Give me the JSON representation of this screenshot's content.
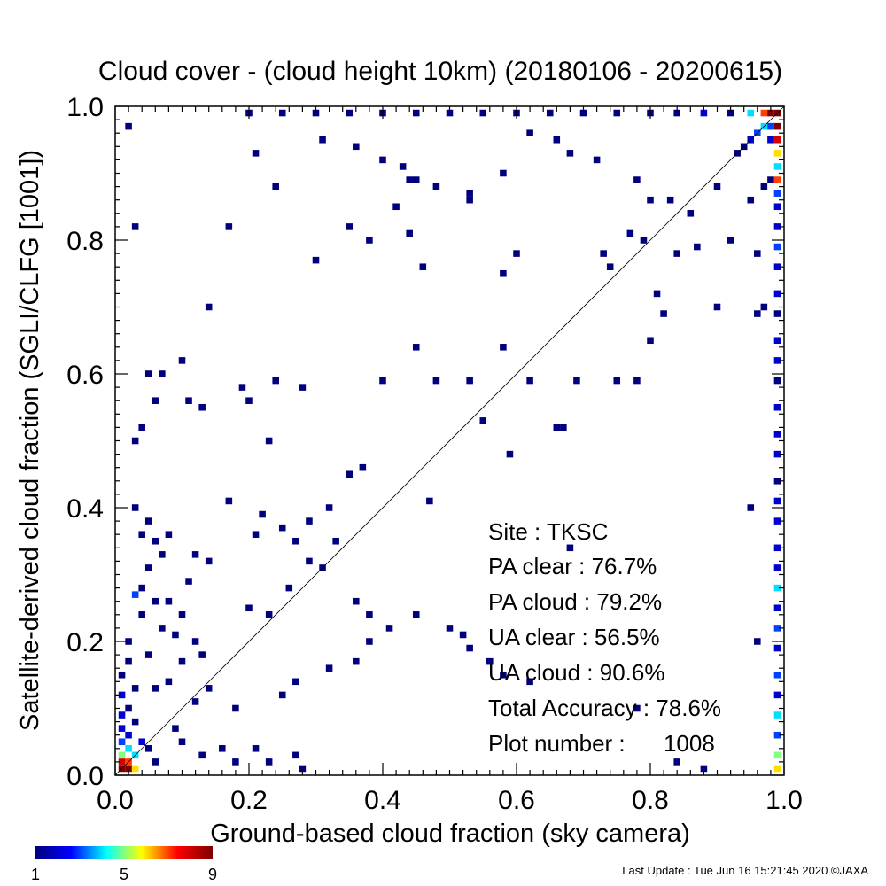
{
  "chart_data": {
    "type": "heatmap",
    "title": "Cloud cover - (cloud height 10km)  (20180106 - 20200615)",
    "xlabel": "Ground-based cloud fraction (sky camera)",
    "ylabel": "Satellite-derived cloud fraction (SGLI/CLFG [1001])",
    "xlim": [
      0,
      1
    ],
    "ylim": [
      0,
      1
    ],
    "xticks": [
      "0.0",
      "0.2",
      "0.4",
      "0.6",
      "0.8",
      "1.0"
    ],
    "yticks": [
      "0.0",
      "0.2",
      "0.4",
      "0.6",
      "0.8",
      "1.0"
    ],
    "bin_size": 0.01,
    "diagonal_line": true,
    "colorbar": {
      "min": 1,
      "max": 9,
      "tick_labels": [
        "1",
        "5",
        "9"
      ],
      "stops": [
        "#00007f",
        "#0000ff",
        "#00ffff",
        "#ffff00",
        "#ff0000",
        "#7f0000"
      ]
    },
    "cells": [
      [
        0.2,
        0.99,
        1
      ],
      [
        0.25,
        0.99,
        1
      ],
      [
        0.3,
        0.99,
        1
      ],
      [
        0.35,
        0.99,
        1
      ],
      [
        0.4,
        0.99,
        1
      ],
      [
        0.45,
        0.99,
        1
      ],
      [
        0.5,
        0.99,
        1
      ],
      [
        0.55,
        0.99,
        1
      ],
      [
        0.6,
        0.99,
        1
      ],
      [
        0.65,
        0.99,
        1
      ],
      [
        0.7,
        0.99,
        1
      ],
      [
        0.75,
        0.99,
        1
      ],
      [
        0.8,
        0.99,
        1
      ],
      [
        0.84,
        0.99,
        1
      ],
      [
        0.88,
        0.99,
        2
      ],
      [
        0.92,
        0.99,
        1
      ],
      [
        0.95,
        0.99,
        4
      ],
      [
        0.97,
        0.99,
        7
      ],
      [
        0.98,
        0.99,
        9
      ],
      [
        0.99,
        0.99,
        9
      ],
      [
        0.99,
        0.97,
        9
      ],
      [
        0.99,
        0.95,
        8
      ],
      [
        0.99,
        0.93,
        6
      ],
      [
        0.99,
        0.91,
        4
      ],
      [
        0.99,
        0.89,
        7
      ],
      [
        0.99,
        0.87,
        3
      ],
      [
        0.99,
        0.85,
        2
      ],
      [
        0.99,
        0.82,
        2
      ],
      [
        0.99,
        0.79,
        3
      ],
      [
        0.99,
        0.76,
        2
      ],
      [
        0.99,
        0.72,
        2
      ],
      [
        0.99,
        0.69,
        1
      ],
      [
        0.99,
        0.65,
        2
      ],
      [
        0.99,
        0.62,
        2
      ],
      [
        0.99,
        0.59,
        1
      ],
      [
        0.99,
        0.55,
        2
      ],
      [
        0.99,
        0.51,
        2
      ],
      [
        0.99,
        0.48,
        2
      ],
      [
        0.99,
        0.44,
        1
      ],
      [
        0.99,
        0.41,
        2
      ],
      [
        0.99,
        0.38,
        2
      ],
      [
        0.99,
        0.34,
        2
      ],
      [
        0.99,
        0.31,
        2
      ],
      [
        0.99,
        0.28,
        4
      ],
      [
        0.99,
        0.25,
        2
      ],
      [
        0.99,
        0.22,
        3
      ],
      [
        0.99,
        0.19,
        2
      ],
      [
        0.99,
        0.15,
        3
      ],
      [
        0.99,
        0.12,
        2
      ],
      [
        0.99,
        0.09,
        4
      ],
      [
        0.99,
        0.06,
        3
      ],
      [
        0.99,
        0.03,
        5
      ],
      [
        0.99,
        0.01,
        6
      ],
      [
        0.97,
        0.97,
        4
      ],
      [
        0.96,
        0.96,
        3
      ],
      [
        0.95,
        0.95,
        2
      ],
      [
        0.94,
        0.94,
        1
      ],
      [
        0.93,
        0.93,
        1
      ],
      [
        0.98,
        0.97,
        3
      ],
      [
        0.98,
        0.95,
        2
      ],
      [
        0.01,
        0.01,
        9
      ],
      [
        0.02,
        0.01,
        9
      ],
      [
        0.03,
        0.01,
        6
      ],
      [
        0.01,
        0.02,
        8
      ],
      [
        0.02,
        0.02,
        7
      ],
      [
        0.01,
        0.03,
        5
      ],
      [
        0.02,
        0.04,
        4
      ],
      [
        0.03,
        0.03,
        4
      ],
      [
        0.01,
        0.05,
        3
      ],
      [
        0.02,
        0.06,
        2
      ],
      [
        0.01,
        0.07,
        2
      ],
      [
        0.03,
        0.08,
        1
      ],
      [
        0.01,
        0.09,
        2
      ],
      [
        0.02,
        0.1,
        1
      ],
      [
        0.01,
        0.12,
        2
      ],
      [
        0.03,
        0.13,
        1
      ],
      [
        0.01,
        0.15,
        1
      ],
      [
        0.02,
        0.17,
        1
      ],
      [
        0.04,
        0.05,
        2
      ],
      [
        0.05,
        0.04,
        1
      ],
      [
        0.06,
        0.02,
        1
      ],
      [
        0.14,
        0.7,
        1
      ],
      [
        0.02,
        0.97,
        1
      ],
      [
        0.07,
        0.6,
        1
      ],
      [
        0.1,
        0.62,
        1
      ],
      [
        0.06,
        0.56,
        1
      ],
      [
        0.05,
        0.6,
        1
      ],
      [
        0.11,
        0.56,
        1
      ],
      [
        0.03,
        0.5,
        1
      ],
      [
        0.04,
        0.52,
        1
      ],
      [
        0.13,
        0.55,
        1
      ],
      [
        0.19,
        0.58,
        1
      ],
      [
        0.2,
        0.56,
        1
      ],
      [
        0.24,
        0.59,
        1
      ],
      [
        0.23,
        0.5,
        1
      ],
      [
        0.28,
        0.58,
        1
      ],
      [
        0.17,
        0.41,
        1
      ],
      [
        0.22,
        0.39,
        1
      ],
      [
        0.25,
        0.37,
        1
      ],
      [
        0.29,
        0.38,
        1
      ],
      [
        0.33,
        0.35,
        1
      ],
      [
        0.35,
        0.45,
        1
      ],
      [
        0.37,
        0.46,
        1
      ],
      [
        0.4,
        0.59,
        1
      ],
      [
        0.48,
        0.59,
        1
      ],
      [
        0.53,
        0.59,
        1
      ],
      [
        0.45,
        0.64,
        1
      ],
      [
        0.55,
        0.53,
        1
      ],
      [
        0.58,
        0.64,
        1
      ],
      [
        0.59,
        0.48,
        1
      ],
      [
        0.62,
        0.59,
        1
      ],
      [
        0.66,
        0.52,
        1
      ],
      [
        0.67,
        0.52,
        1
      ],
      [
        0.69,
        0.59,
        1
      ],
      [
        0.75,
        0.59,
        1
      ],
      [
        0.78,
        0.59,
        1
      ],
      [
        0.8,
        0.65,
        1
      ],
      [
        0.82,
        0.69,
        1
      ],
      [
        0.9,
        0.7,
        1
      ],
      [
        0.96,
        0.69,
        1
      ],
      [
        0.97,
        0.7,
        1
      ],
      [
        0.03,
        0.82,
        1
      ],
      [
        0.17,
        0.82,
        1
      ],
      [
        0.24,
        0.88,
        1
      ],
      [
        0.21,
        0.93,
        1
      ],
      [
        0.31,
        0.95,
        1
      ],
      [
        0.36,
        0.94,
        1
      ],
      [
        0.4,
        0.92,
        1
      ],
      [
        0.43,
        0.91,
        1
      ],
      [
        0.44,
        0.89,
        1
      ],
      [
        0.45,
        0.89,
        1
      ],
      [
        0.48,
        0.88,
        1
      ],
      [
        0.53,
        0.87,
        1
      ],
      [
        0.58,
        0.9,
        1
      ],
      [
        0.62,
        0.96,
        1
      ],
      [
        0.66,
        0.95,
        1
      ],
      [
        0.68,
        0.93,
        1
      ],
      [
        0.72,
        0.92,
        1
      ],
      [
        0.78,
        0.89,
        1
      ],
      [
        0.8,
        0.86,
        1
      ],
      [
        0.83,
        0.86,
        1
      ],
      [
        0.86,
        0.84,
        1
      ],
      [
        0.9,
        0.88,
        1
      ],
      [
        0.95,
        0.86,
        1
      ],
      [
        0.97,
        0.88,
        1
      ],
      [
        0.98,
        0.89,
        1
      ],
      [
        0.3,
        0.77,
        1
      ],
      [
        0.35,
        0.82,
        1
      ],
      [
        0.38,
        0.8,
        1
      ],
      [
        0.42,
        0.85,
        1
      ],
      [
        0.44,
        0.81,
        1
      ],
      [
        0.46,
        0.76,
        1
      ],
      [
        0.53,
        0.86,
        1
      ],
      [
        0.58,
        0.75,
        1
      ],
      [
        0.6,
        0.78,
        1
      ],
      [
        0.73,
        0.78,
        1
      ],
      [
        0.74,
        0.76,
        1
      ],
      [
        0.77,
        0.81,
        1
      ],
      [
        0.79,
        0.8,
        1
      ],
      [
        0.81,
        0.72,
        1
      ],
      [
        0.84,
        0.78,
        1
      ],
      [
        0.87,
        0.79,
        1
      ],
      [
        0.92,
        0.8,
        1
      ],
      [
        0.96,
        0.78,
        1
      ],
      [
        0.03,
        0.4,
        1
      ],
      [
        0.05,
        0.38,
        1
      ],
      [
        0.04,
        0.36,
        1
      ],
      [
        0.06,
        0.35,
        1
      ],
      [
        0.08,
        0.36,
        1
      ],
      [
        0.07,
        0.33,
        1
      ],
      [
        0.05,
        0.31,
        1
      ],
      [
        0.04,
        0.28,
        1
      ],
      [
        0.06,
        0.26,
        1
      ],
      [
        0.08,
        0.26,
        1
      ],
      [
        0.1,
        0.24,
        1
      ],
      [
        0.11,
        0.29,
        1
      ],
      [
        0.12,
        0.33,
        1
      ],
      [
        0.14,
        0.32,
        1
      ],
      [
        0.04,
        0.24,
        1
      ],
      [
        0.03,
        0.27,
        3
      ],
      [
        0.07,
        0.22,
        1
      ],
      [
        0.09,
        0.21,
        1
      ],
      [
        0.12,
        0.2,
        1
      ],
      [
        0.13,
        0.18,
        1
      ],
      [
        0.1,
        0.17,
        1
      ],
      [
        0.05,
        0.18,
        1
      ],
      [
        0.02,
        0.2,
        1
      ],
      [
        0.06,
        0.13,
        1
      ],
      [
        0.08,
        0.14,
        1
      ],
      [
        0.14,
        0.13,
        1
      ],
      [
        0.18,
        0.1,
        1
      ],
      [
        0.12,
        0.11,
        1
      ],
      [
        0.09,
        0.07,
        1
      ],
      [
        0.1,
        0.05,
        1
      ],
      [
        0.13,
        0.03,
        1
      ],
      [
        0.16,
        0.04,
        1
      ],
      [
        0.18,
        0.02,
        1
      ],
      [
        0.21,
        0.04,
        1
      ],
      [
        0.23,
        0.02,
        1
      ],
      [
        0.27,
        0.03,
        1
      ],
      [
        0.28,
        0.01,
        1
      ],
      [
        0.2,
        0.25,
        1
      ],
      [
        0.21,
        0.36,
        1
      ],
      [
        0.23,
        0.24,
        1
      ],
      [
        0.26,
        0.28,
        1
      ],
      [
        0.27,
        0.35,
        1
      ],
      [
        0.29,
        0.32,
        1
      ],
      [
        0.31,
        0.31,
        1
      ],
      [
        0.32,
        0.4,
        1
      ],
      [
        0.36,
        0.26,
        1
      ],
      [
        0.38,
        0.2,
        1
      ],
      [
        0.38,
        0.24,
        1
      ],
      [
        0.41,
        0.22,
        1
      ],
      [
        0.45,
        0.24,
        1
      ],
      [
        0.47,
        0.41,
        1
      ],
      [
        0.5,
        0.22,
        1
      ],
      [
        0.52,
        0.21,
        1
      ],
      [
        0.53,
        0.19,
        1
      ],
      [
        0.56,
        0.17,
        1
      ],
      [
        0.58,
        0.15,
        1
      ],
      [
        0.62,
        0.14,
        1
      ],
      [
        0.68,
        0.34,
        1
      ],
      [
        0.78,
        0.1,
        1
      ],
      [
        0.84,
        0.02,
        1
      ],
      [
        0.88,
        0.01,
        1
      ],
      [
        0.95,
        0.4,
        1
      ],
      [
        0.96,
        0.2,
        1
      ],
      [
        0.27,
        0.14,
        1
      ],
      [
        0.25,
        0.12,
        1
      ],
      [
        0.32,
        0.16,
        1
      ],
      [
        0.36,
        0.17,
        1
      ]
    ]
  },
  "stats": {
    "site_label": "Site : TKSC",
    "pa_clear": "PA clear :  76.7%",
    "pa_cloud": "PA cloud :  79.2%",
    "ua_clear": "UA clear :  56.5%",
    "ua_cloud": "UA cloud :  90.6%",
    "total_accuracy": "Total Accuracy :  78.6%",
    "plot_number": "Plot number :      1008"
  },
  "footer": {
    "last_update": "Last Update : Tue Jun 16 15:21:45 2020  ©JAXA"
  }
}
